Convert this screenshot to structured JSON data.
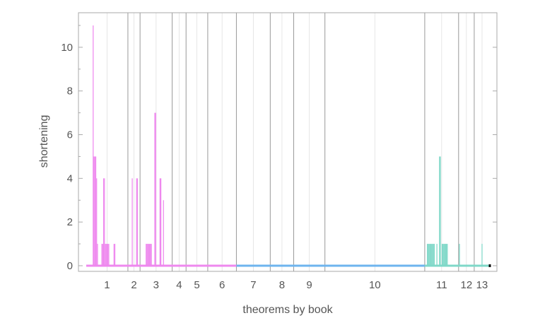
{
  "chart_data": {
    "type": "bar",
    "xlabel": "theorems by book",
    "ylabel": "shortening",
    "ylim": [
      0,
      11.4
    ],
    "yticks": [
      0,
      2,
      4,
      6,
      8,
      10
    ],
    "xlim": [
      0,
      465
    ],
    "grid": true,
    "colors": {
      "pink": "#ee88ee",
      "blue": "#6eb4ee",
      "teal": "#7fd8c8",
      "axis": "#aaaaaa",
      "grid": "#cccccc",
      "book_line": "#999999",
      "end_mark": "#111111"
    },
    "books": [
      {
        "label": "1",
        "start": 0,
        "end": 48
      },
      {
        "label": "2",
        "start": 48,
        "end": 62
      },
      {
        "label": "3",
        "start": 62,
        "end": 99
      },
      {
        "label": "4",
        "start": 99,
        "end": 115
      },
      {
        "label": "5",
        "start": 115,
        "end": 140
      },
      {
        "label": "6",
        "start": 140,
        "end": 173
      },
      {
        "label": "7",
        "start": 173,
        "end": 212
      },
      {
        "label": "8",
        "start": 212,
        "end": 239
      },
      {
        "label": "9",
        "start": 239,
        "end": 275
      },
      {
        "label": "10",
        "start": 275,
        "end": 390
      },
      {
        "label": "11",
        "start": 390,
        "end": 429
      },
      {
        "label": "12",
        "start": 429,
        "end": 447
      },
      {
        "label": "13",
        "start": 447,
        "end": 465
      }
    ],
    "series": [
      {
        "color_key": "pink",
        "x_start": 0,
        "x_end": 173,
        "nonzero": [
          [
            8,
            11
          ],
          [
            9,
            5
          ],
          [
            10,
            5
          ],
          [
            11,
            5
          ],
          [
            12,
            4
          ],
          [
            13,
            1
          ],
          [
            18,
            1
          ],
          [
            19,
            1
          ],
          [
            20,
            4
          ],
          [
            21,
            4
          ],
          [
            22,
            1
          ],
          [
            23,
            1
          ],
          [
            24,
            1
          ],
          [
            25,
            1
          ],
          [
            26,
            1
          ],
          [
            32,
            1
          ],
          [
            33,
            1
          ],
          [
            53,
            4
          ],
          [
            58,
            4
          ],
          [
            59,
            4
          ],
          [
            69,
            1
          ],
          [
            70,
            1
          ],
          [
            71,
            1
          ],
          [
            72,
            1
          ],
          [
            73,
            1
          ],
          [
            74,
            1
          ],
          [
            75,
            1
          ],
          [
            79,
            7
          ],
          [
            80,
            7
          ],
          [
            85,
            4
          ],
          [
            86,
            4
          ],
          [
            89,
            3
          ]
        ]
      },
      {
        "color_key": "blue",
        "x_start": 173,
        "x_end": 390,
        "nonzero": []
      },
      {
        "color_key": "teal",
        "x_start": 390,
        "x_end": 465,
        "nonzero": [
          [
            393,
            1
          ],
          [
            394,
            1
          ],
          [
            395,
            1
          ],
          [
            396,
            1
          ],
          [
            397,
            1
          ],
          [
            398,
            1
          ],
          [
            399,
            1
          ],
          [
            400,
            1
          ],
          [
            401,
            1
          ],
          [
            404,
            1
          ],
          [
            407,
            5
          ],
          [
            408,
            5
          ],
          [
            410,
            1
          ],
          [
            411,
            1
          ],
          [
            412,
            1
          ],
          [
            413,
            1
          ],
          [
            414,
            1
          ],
          [
            415,
            1
          ],
          [
            416,
            1
          ],
          [
            430,
            1
          ],
          [
            456,
            1
          ]
        ]
      }
    ]
  }
}
